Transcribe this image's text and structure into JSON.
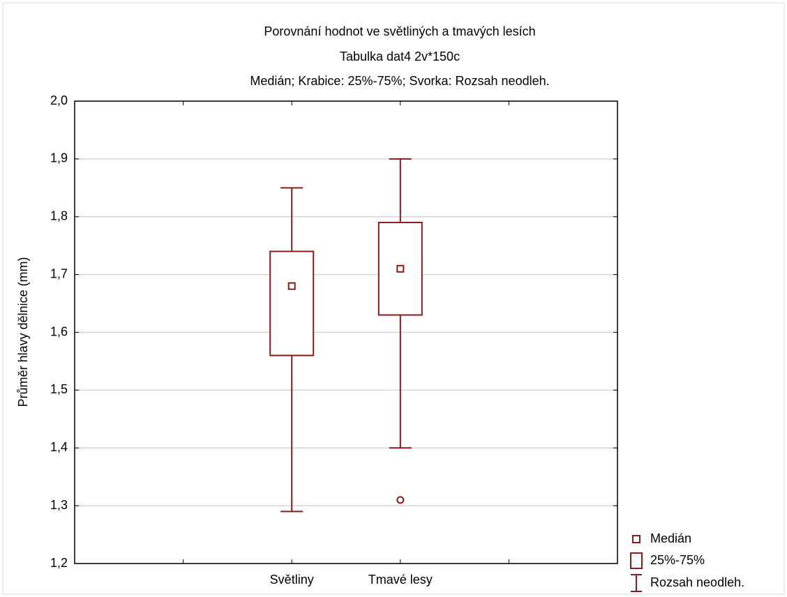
{
  "chart_data": {
    "type": "box",
    "title": "Porovnání hodnot ve světliných a tmavých lesích",
    "subtitle": "Tabulka dat4 2v*150c",
    "description": "Medián; Krabice: 25%-75%; Svorka: Rozsah neodleh.",
    "y_label": "Průměr hlavy dělnice (mm)",
    "categories": [
      "Světliny",
      "Tmavé lesy"
    ],
    "median": [
      1.68,
      1.71
    ],
    "q1": [
      1.56,
      1.63
    ],
    "q3": [
      1.74,
      1.79
    ],
    "whisker_low": [
      1.29,
      1.4
    ],
    "whisker_high": [
      1.85,
      1.9
    ],
    "outliers": [
      null,
      1.31
    ],
    "color": "#8b1a1a",
    "grid": true,
    "legend": [
      "Medián",
      "25%-75%",
      "Rozsah neodleh."
    ],
    "ylim": [
      1.2,
      2.0
    ],
    "yticks": [
      {
        "value": 1.2,
        "label": "1,2"
      },
      {
        "value": 1.3,
        "label": "1,3"
      },
      {
        "value": 1.4,
        "label": "1,4"
      },
      {
        "value": 1.5,
        "label": "1,5"
      },
      {
        "value": 1.6,
        "label": "1,6"
      },
      {
        "value": 1.7,
        "label": "1,7"
      },
      {
        "value": 1.8,
        "label": "1,8"
      },
      {
        "value": 1.9,
        "label": "1,9"
      },
      {
        "value": 2.0,
        "label": "2,0"
      }
    ]
  }
}
